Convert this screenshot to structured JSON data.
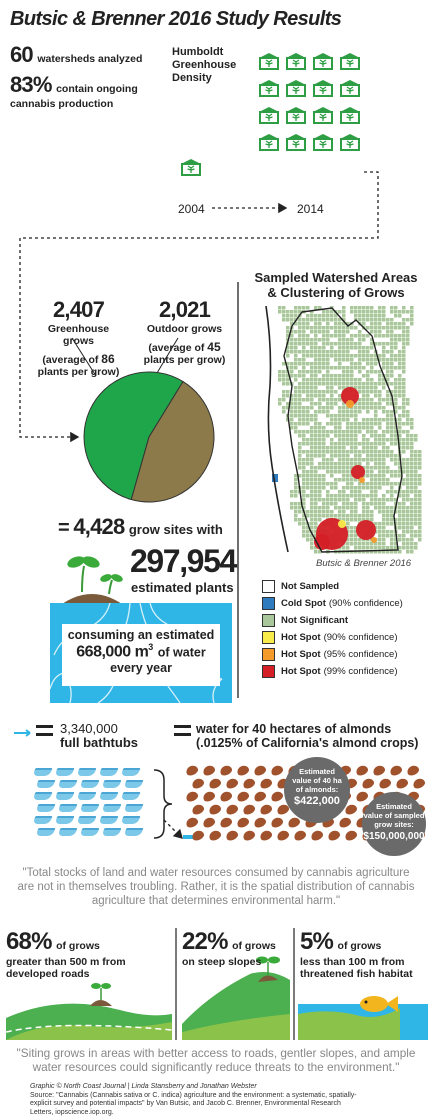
{
  "title": "Butsic & Brenner 2016 Study Results",
  "stats": {
    "watersheds_num": "60",
    "watersheds_label": "watersheds analyzed",
    "cannabis_pct": "83%",
    "cannabis_label_1": "contain ongoing",
    "cannabis_label_2": "cannabis production"
  },
  "density": {
    "label_1": "Humboldt",
    "label_2": "Greenhouse",
    "label_3": "Density",
    "year_start": "2004",
    "year_end": "2014",
    "count_2004": 1,
    "count_2014": 16
  },
  "grows": {
    "greenhouse_num": "2,407",
    "greenhouse_label": "Greenhouse grows",
    "greenhouse_avg_1": "(average of",
    "greenhouse_avg_num": "86",
    "greenhouse_avg_2": "plants per grow)",
    "outdoor_num": "2,021",
    "outdoor_label": "Outdoor grows",
    "outdoor_avg_1": "(average of",
    "outdoor_avg_num": "45",
    "outdoor_avg_2": "plants per grow)",
    "greenhouse_value": 2407,
    "outdoor_value": 2021,
    "greenhouse_color": "#1fa64a",
    "outdoor_color": "#8c7a4a"
  },
  "totals": {
    "equals": "=",
    "sites_num": "4,428",
    "sites_label": "grow sites with",
    "plants_num": "297,954",
    "plants_label": "estimated plants",
    "water_1": "consuming an estimated",
    "water_num": "668,000 m",
    "water_sup": "3",
    "water_2": "of water",
    "water_3": "every year"
  },
  "map": {
    "title_1": "Sampled Watershed Areas",
    "title_2": "& Clustering of Grows",
    "credit": "Butsic & Brenner 2016",
    "legend": [
      {
        "bold": "Not Sampled",
        "note": "",
        "color": "#ffffff"
      },
      {
        "bold": "Cold Spot",
        "note": "(90% confidence)",
        "color": "#2e7bbf"
      },
      {
        "bold": "Not Significant",
        "note": "",
        "color": "#a9c79a"
      },
      {
        "bold": "Hot Spot",
        "note": "(90% confidence)",
        "color": "#f7ec4a"
      },
      {
        "bold": "Hot Spot",
        "note": "(95% confidence)",
        "color": "#f39a2b"
      },
      {
        "bold": "Hot Spot",
        "note": "(99% confidence)",
        "color": "#d41f26"
      }
    ]
  },
  "equivalents": {
    "bathtubs_num": "3,340,000",
    "bathtubs_label": "full bathtubs",
    "almond_1": "water for 40 hectares of almonds",
    "almond_2": "(.0125% of California's almond crops)",
    "circle1_1": "Estimated",
    "circle1_2": "value of 40 ha",
    "circle1_3": "of almonds:",
    "circle1_val": "$422,000",
    "circle2_1": "Estimated",
    "circle2_2": "value of sampled",
    "circle2_3": "grow sites:",
    "circle2_val": "$150,000,000"
  },
  "quote1": {
    "line1": "\"Total stocks of land and water resources consumed by cannabis agriculture",
    "line2": "are not in themselves troubling. Rather, it is the spatial distribution of cannabis",
    "line3": "agriculture that determines environmental harm.\""
  },
  "percentages": [
    {
      "pct": "68%",
      "of": "of grows",
      "d1": "greater than 500 m from",
      "d2": "developed roads",
      "value": 68
    },
    {
      "pct": "22%",
      "of": "of grows",
      "d1": "on steep slopes",
      "d2": "",
      "value": 22
    },
    {
      "pct": "5%",
      "of": "of grows",
      "d1": "less than 100 m from",
      "d2": "threatened fish habitat",
      "value": 5
    }
  ],
  "quote2": {
    "line1": "\"Siting grows in areas with better access to roads, gentler slopes, and ample",
    "line2": "water resources could significantly reduce threats to the environment.\""
  },
  "footer": {
    "credit": "Graphic © North Coast Journal | Linda Stansberry and Jonathan Webster",
    "source_1": "Source: \"Cannabis (Cannabis sativa or C. indica) agriculture and the environment: a systematic, spatially-",
    "source_2": "explicit survey and potential impacts\" by Van Butsic, and Jacob C. Brenner, Environmental Research",
    "source_3": "Letters, iopscience.iop.org."
  }
}
